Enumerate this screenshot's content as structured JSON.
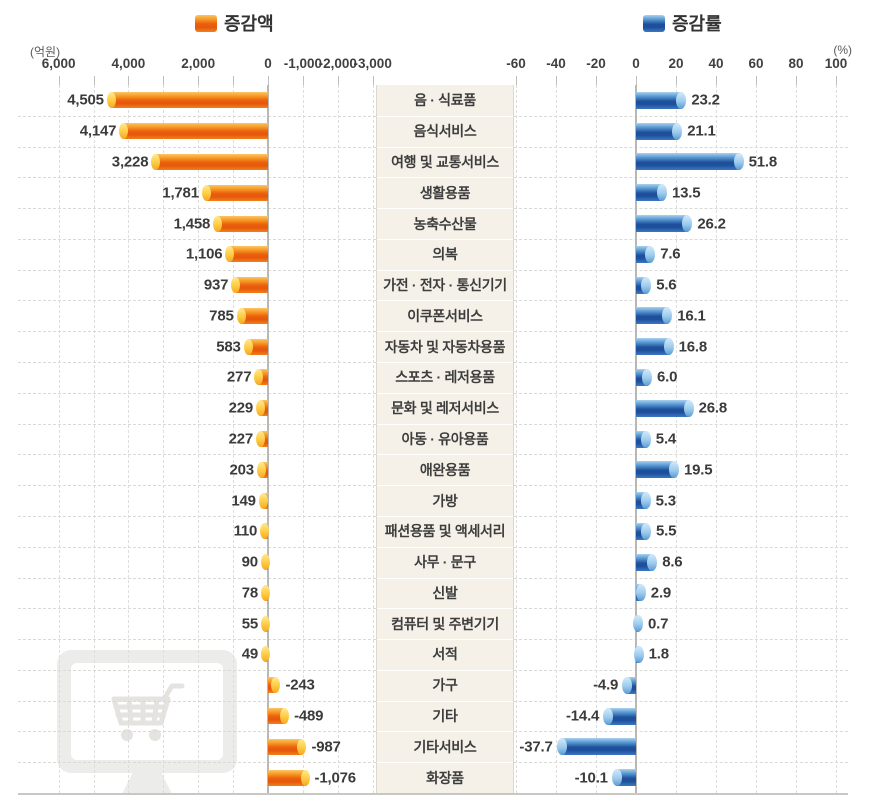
{
  "legend": {
    "amount_label": "증감액",
    "rate_label": "증감률"
  },
  "axes": {
    "left_unit": "(억원)",
    "right_unit": "(%)",
    "left_ticks": [
      {
        "label": "6,000",
        "value": 6000
      },
      {
        "label": "4,000",
        "value": 4000
      },
      {
        "label": "2,000",
        "value": 2000
      },
      {
        "label": "0",
        "value": 0
      },
      {
        "label": "-1,000",
        "value": -1000
      },
      {
        "label": "-2,000",
        "value": -2000
      },
      {
        "label": "-3,000",
        "value": -3000
      }
    ],
    "left_minor_tick_values": [
      6000,
      5000,
      4000,
      3000,
      2000,
      1000,
      0,
      -1000,
      -2000,
      -3000
    ],
    "right_ticks": [
      {
        "label": "-60",
        "value": -60
      },
      {
        "label": "-40",
        "value": -40
      },
      {
        "label": "-20",
        "value": -20
      },
      {
        "label": "0",
        "value": 0
      },
      {
        "label": "20",
        "value": 20
      },
      {
        "label": "40",
        "value": 40
      },
      {
        "label": "60",
        "value": 60
      },
      {
        "label": "80",
        "value": 80
      },
      {
        "label": "100",
        "value": 100
      }
    ]
  },
  "colors": {
    "amount_bar": "#ea610e",
    "amount_cap": "#ffd24e",
    "rate_bar": "#1d4f9b",
    "rate_cap": "#9ccbed",
    "label_column_bg": "#f5f1e8",
    "grid": "#d9d9d6",
    "watermark": "#ececea"
  },
  "chart_data": {
    "type": "bar",
    "orientation": "horizontal-dual",
    "categories": [
      "음 · 식료품",
      "음식서비스",
      "여행 및 교통서비스",
      "생활용품",
      "농축수산물",
      "의복",
      "가전 · 전자 · 통신기기",
      "이쿠폰서비스",
      "자동차 및 자동차용품",
      "스포츠 · 레저용품",
      "문화 및 레저서비스",
      "아동 · 유아용품",
      "애완용품",
      "가방",
      "패션용품 및 액세서리",
      "사무 · 문구",
      "신발",
      "컴퓨터 및 주변기기",
      "서적",
      "가구",
      "기타",
      "기타서비스",
      "화장품"
    ],
    "series": [
      {
        "name": "증감액",
        "unit": "억원",
        "values": [
          4505,
          4147,
          3228,
          1781,
          1458,
          1106,
          937,
          785,
          583,
          277,
          229,
          227,
          203,
          149,
          110,
          90,
          78,
          55,
          49,
          -243,
          -489,
          -987,
          -1076
        ],
        "axis_range": [
          6000,
          -3000
        ]
      },
      {
        "name": "증감률",
        "unit": "%",
        "values": [
          23.2,
          21.1,
          51.8,
          13.5,
          26.2,
          7.6,
          5.6,
          16.1,
          16.8,
          6.0,
          26.8,
          5.4,
          19.5,
          5.3,
          5.5,
          8.6,
          2.9,
          0.7,
          1.8,
          -4.9,
          -14.4,
          -37.7,
          -10.1
        ],
        "axis_range": [
          -60,
          100
        ]
      }
    ],
    "grid": "dashed",
    "legend_position": "top"
  },
  "rows": [
    {
      "label": "음 · 식료품",
      "amount": 4505,
      "amount_display": "4,505",
      "rate": 23.2,
      "rate_display": "23.2"
    },
    {
      "label": "음식서비스",
      "amount": 4147,
      "amount_display": "4,147",
      "rate": 21.1,
      "rate_display": "21.1"
    },
    {
      "label": "여행 및 교통서비스",
      "amount": 3228,
      "amount_display": "3,228",
      "rate": 51.8,
      "rate_display": "51.8"
    },
    {
      "label": "생활용품",
      "amount": 1781,
      "amount_display": "1,781",
      "rate": 13.5,
      "rate_display": "13.5"
    },
    {
      "label": "농축수산물",
      "amount": 1458,
      "amount_display": "1,458",
      "rate": 26.2,
      "rate_display": "26.2"
    },
    {
      "label": "의복",
      "amount": 1106,
      "amount_display": "1,106",
      "rate": 7.6,
      "rate_display": "7.6"
    },
    {
      "label": "가전 · 전자 · 통신기기",
      "amount": 937,
      "amount_display": "937",
      "rate": 5.6,
      "rate_display": "5.6"
    },
    {
      "label": "이쿠폰서비스",
      "amount": 785,
      "amount_display": "785",
      "rate": 16.1,
      "rate_display": "16.1"
    },
    {
      "label": "자동차 및 자동차용품",
      "amount": 583,
      "amount_display": "583",
      "rate": 16.8,
      "rate_display": "16.8"
    },
    {
      "label": "스포츠 · 레저용품",
      "amount": 277,
      "amount_display": "277",
      "rate": 6.0,
      "rate_display": "6.0"
    },
    {
      "label": "문화 및 레저서비스",
      "amount": 229,
      "amount_display": "229",
      "rate": 26.8,
      "rate_display": "26.8"
    },
    {
      "label": "아동 · 유아용품",
      "amount": 227,
      "amount_display": "227",
      "rate": 5.4,
      "rate_display": "5.4"
    },
    {
      "label": "애완용품",
      "amount": 203,
      "amount_display": "203",
      "rate": 19.5,
      "rate_display": "19.5"
    },
    {
      "label": "가방",
      "amount": 149,
      "amount_display": "149",
      "rate": 5.3,
      "rate_display": "5.3"
    },
    {
      "label": "패션용품 및 액세서리",
      "amount": 110,
      "amount_display": "110",
      "rate": 5.5,
      "rate_display": "5.5"
    },
    {
      "label": "사무 · 문구",
      "amount": 90,
      "amount_display": "90",
      "rate": 8.6,
      "rate_display": "8.6"
    },
    {
      "label": "신발",
      "amount": 78,
      "amount_display": "78",
      "rate": 2.9,
      "rate_display": "2.9"
    },
    {
      "label": "컴퓨터 및 주변기기",
      "amount": 55,
      "amount_display": "55",
      "rate": 0.7,
      "rate_display": "0.7"
    },
    {
      "label": "서적",
      "amount": 49,
      "amount_display": "49",
      "rate": 1.8,
      "rate_display": "1.8"
    },
    {
      "label": "가구",
      "amount": -243,
      "amount_display": "-243",
      "rate": -4.9,
      "rate_display": "-4.9"
    },
    {
      "label": "기타",
      "amount": -489,
      "amount_display": "-489",
      "rate": -14.4,
      "rate_display": "-14.4"
    },
    {
      "label": "기타서비스",
      "amount": -987,
      "amount_display": "-987",
      "rate": -37.7,
      "rate_display": "-37.7"
    },
    {
      "label": "화장품",
      "amount": -1076,
      "amount_display": "-1,076",
      "rate": -10.1,
      "rate_display": "-10.1"
    }
  ]
}
